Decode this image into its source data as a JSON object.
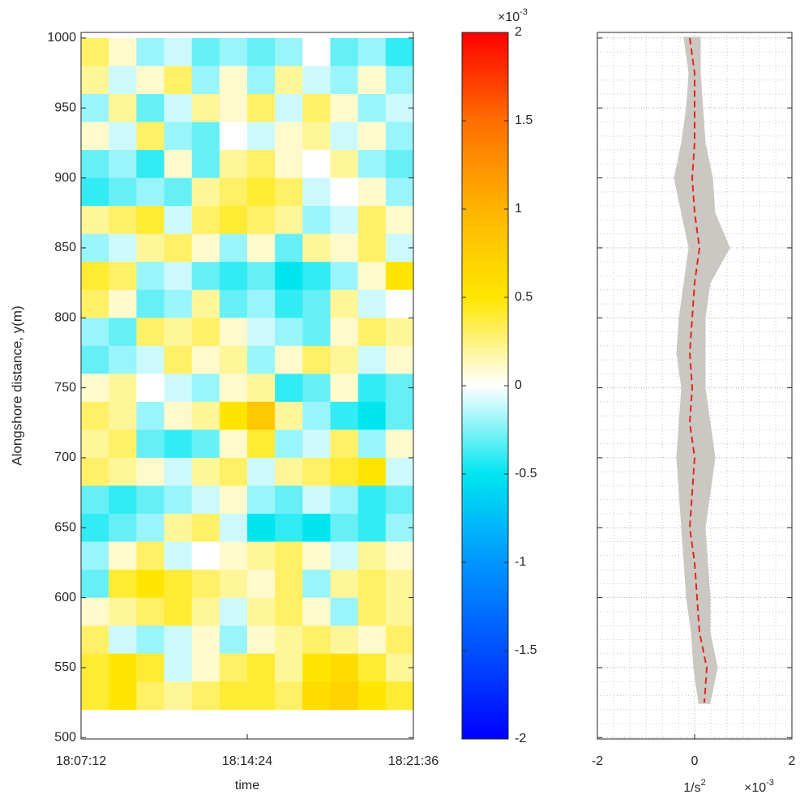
{
  "chart_data": [
    {
      "type": "heatmap",
      "xlabel": "time",
      "ylabel": "Alongshore distance, y(m)",
      "x": [
        36,
        108,
        180,
        252,
        324,
        396,
        468,
        540,
        612,
        684,
        756,
        828
      ],
      "y": [
        990,
        970,
        950,
        930,
        910,
        890,
        870,
        850,
        830,
        810,
        790,
        770,
        750,
        730,
        710,
        690,
        670,
        650,
        630,
        610,
        590,
        570,
        550,
        530
      ],
      "z": [
        [
          0.3,
          0.1,
          -0.2,
          -0.1,
          -0.3,
          -0.2,
          -0.3,
          -0.2,
          0.0,
          -0.3,
          -0.2,
          -0.4
        ],
        [
          0.2,
          -0.1,
          0.1,
          0.3,
          -0.2,
          0.1,
          -0.2,
          0.2,
          -0.1,
          -0.2,
          0.1,
          -0.2
        ],
        [
          -0.2,
          0.2,
          -0.3,
          -0.1,
          0.2,
          0.1,
          0.3,
          -0.1,
          0.3,
          0.1,
          -0.2,
          -0.1
        ],
        [
          0.1,
          -0.1,
          0.3,
          -0.2,
          -0.3,
          0.0,
          -0.1,
          0.1,
          0.2,
          -0.1,
          0.1,
          -0.2
        ],
        [
          -0.3,
          -0.2,
          -0.4,
          0.1,
          -0.3,
          0.2,
          0.3,
          0.1,
          0.0,
          0.2,
          -0.2,
          -0.3
        ],
        [
          -0.4,
          -0.3,
          -0.2,
          -0.3,
          0.2,
          0.3,
          0.4,
          0.3,
          -0.1,
          0.0,
          0.1,
          -0.2
        ],
        [
          0.2,
          0.3,
          0.4,
          -0.1,
          0.3,
          0.4,
          0.3,
          0.2,
          -0.2,
          -0.1,
          0.3,
          0.1
        ],
        [
          -0.2,
          -0.1,
          0.2,
          0.3,
          0.1,
          -0.2,
          0.1,
          -0.3,
          0.2,
          0.1,
          0.3,
          -0.1
        ],
        [
          0.4,
          0.3,
          -0.2,
          -0.1,
          -0.3,
          -0.4,
          -0.3,
          -0.5,
          -0.4,
          -0.2,
          0.1,
          0.5
        ],
        [
          0.3,
          0.1,
          -0.3,
          -0.2,
          0.2,
          -0.3,
          -0.2,
          -0.4,
          -0.3,
          0.2,
          -0.1,
          0.0
        ],
        [
          -0.2,
          -0.3,
          0.3,
          0.2,
          0.3,
          0.1,
          -0.1,
          -0.2,
          -0.3,
          0.1,
          0.3,
          0.2
        ],
        [
          -0.3,
          -0.2,
          -0.1,
          0.3,
          0.1,
          0.2,
          -0.2,
          0.1,
          0.3,
          0.2,
          -0.1,
          0.1
        ],
        [
          0.1,
          0.2,
          0.0,
          -0.1,
          -0.2,
          0.1,
          0.2,
          -0.4,
          -0.3,
          0.1,
          -0.4,
          -0.3
        ],
        [
          0.3,
          0.2,
          -0.2,
          0.1,
          0.2,
          0.5,
          0.8,
          0.2,
          -0.2,
          -0.4,
          -0.5,
          -0.3
        ],
        [
          0.2,
          0.3,
          -0.3,
          -0.4,
          -0.3,
          0.1,
          0.4,
          -0.2,
          -0.1,
          0.3,
          -0.2,
          0.1
        ],
        [
          0.3,
          0.2,
          0.1,
          -0.1,
          0.2,
          0.3,
          -0.1,
          0.2,
          0.3,
          0.4,
          0.5,
          -0.1
        ],
        [
          -0.3,
          -0.4,
          -0.3,
          -0.2,
          -0.1,
          0.1,
          -0.2,
          -0.3,
          -0.1,
          -0.2,
          -0.4,
          -0.3
        ],
        [
          -0.4,
          -0.3,
          -0.2,
          0.2,
          0.3,
          -0.1,
          -0.5,
          -0.4,
          -0.5,
          -0.3,
          -0.4,
          -0.2
        ],
        [
          -0.2,
          0.1,
          0.3,
          -0.1,
          0.0,
          0.1,
          0.2,
          0.3,
          0.1,
          -0.1,
          0.2,
          0.1
        ],
        [
          -0.3,
          0.4,
          0.5,
          0.4,
          0.3,
          0.2,
          0.1,
          0.3,
          -0.2,
          0.2,
          0.3,
          0.2
        ],
        [
          0.1,
          0.2,
          0.3,
          0.4,
          0.2,
          -0.1,
          0.2,
          0.3,
          0.1,
          -0.2,
          0.3,
          0.2
        ],
        [
          0.3,
          -0.1,
          -0.2,
          -0.1,
          0.1,
          -0.2,
          0.1,
          0.2,
          0.3,
          0.2,
          0.1,
          0.3
        ],
        [
          0.4,
          0.5,
          0.4,
          -0.1,
          0.1,
          0.3,
          0.4,
          0.2,
          0.5,
          0.6,
          0.4,
          0.2
        ],
        [
          0.4,
          0.5,
          0.3,
          0.2,
          0.3,
          0.4,
          0.4,
          0.3,
          0.6,
          0.7,
          0.5,
          0.4
        ]
      ],
      "xlim": [
        0,
        864
      ],
      "xticks": [
        {
          "value": 0,
          "label": "18:07:12"
        },
        {
          "value": 432,
          "label": "18:14:24"
        },
        {
          "value": 864,
          "label": "18:21:36"
        }
      ],
      "ylim": [
        499,
        1004
      ],
      "yticks": [
        500,
        550,
        600,
        650,
        700,
        750,
        800,
        850,
        900,
        950,
        1000
      ],
      "colorbar": {
        "clim": [
          -2,
          2
        ],
        "ticks": [
          -2,
          -1.5,
          -1,
          -0.5,
          0,
          0.5,
          1,
          1.5,
          2
        ],
        "colors": [
          "#0000ff",
          "#0050ff",
          "#0096ff",
          "#00e6f0",
          "#ffffff",
          "#ffe600",
          "#ffb400",
          "#ff6e00",
          "#ff0000"
        ],
        "offset_label": {
          "base": "×10",
          "exponent": "-3"
        }
      }
    },
    {
      "type": "profile",
      "xlabel": {
        "base": "1/s",
        "exponent": "2"
      },
      "offset_label": {
        "base": "×10",
        "exponent": "-3"
      },
      "xlim": [
        -2,
        2
      ],
      "xticks": [
        -2,
        0,
        2
      ],
      "ylim": [
        499,
        1004
      ],
      "yticks": [
        500,
        550,
        600,
        650,
        700,
        750,
        800,
        850,
        900,
        950,
        1000
      ],
      "grid": true,
      "y": [
        1000,
        975,
        950,
        925,
        900,
        875,
        850,
        825,
        800,
        775,
        750,
        725,
        700,
        675,
        650,
        625,
        600,
        575,
        550,
        525
      ],
      "band": {
        "color": "#cbc7c2",
        "lower": [
          -0.2,
          -0.1,
          -0.15,
          -0.25,
          -0.4,
          -0.25,
          -0.1,
          -0.2,
          -0.3,
          -0.35,
          -0.25,
          -0.3,
          -0.35,
          -0.3,
          -0.25,
          -0.2,
          -0.15,
          -0.05,
          0.0,
          0.1
        ],
        "upper": [
          0.1,
          0.1,
          0.15,
          0.2,
          0.35,
          0.4,
          0.7,
          0.3,
          0.2,
          0.2,
          0.2,
          0.3,
          0.4,
          0.3,
          0.2,
          0.25,
          0.3,
          0.3,
          0.45,
          0.3
        ]
      },
      "line": {
        "color": "#e3261d",
        "values": [
          -0.1,
          0.0,
          0.0,
          0.0,
          -0.05,
          0.0,
          0.1,
          0.0,
          -0.05,
          -0.1,
          -0.05,
          -0.1,
          0.0,
          -0.05,
          -0.1,
          0.0,
          0.05,
          0.1,
          0.25,
          0.2
        ]
      }
    }
  ]
}
